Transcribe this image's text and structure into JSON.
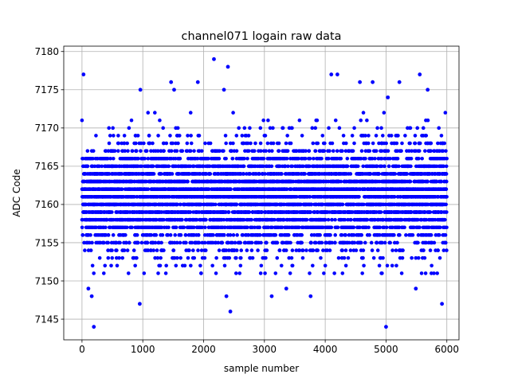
{
  "chart_data": {
    "type": "scatter",
    "title": "channel071 logain raw data",
    "xlabel": "sample number",
    "ylabel": "ADC Code",
    "xlim": [
      -300,
      6200
    ],
    "ylim": [
      7142.3,
      7180.7
    ],
    "xticks": [
      0,
      1000,
      2000,
      3000,
      4000,
      5000,
      6000
    ],
    "yticks": [
      7145,
      7150,
      7155,
      7160,
      7165,
      7170,
      7175,
      7180
    ],
    "grid": true,
    "legend": "none",
    "marker_color": "#0000ff",
    "n_samples": 6000,
    "typical_range": [
      7151,
      7172
    ],
    "center_value": 7161,
    "series": [
      {
        "name": "",
        "outliers": [
          {
            "x": 25,
            "y": 7177
          },
          {
            "x": 105,
            "y": 7149
          },
          {
            "x": 160,
            "y": 7148
          },
          {
            "x": 195,
            "y": 7144
          },
          {
            "x": 950,
            "y": 7147
          },
          {
            "x": 960,
            "y": 7175
          },
          {
            "x": 1465,
            "y": 7176
          },
          {
            "x": 1515,
            "y": 7175
          },
          {
            "x": 1905,
            "y": 7176
          },
          {
            "x": 2170,
            "y": 7179
          },
          {
            "x": 2335,
            "y": 7175
          },
          {
            "x": 2375,
            "y": 7148
          },
          {
            "x": 2400,
            "y": 7178
          },
          {
            "x": 2440,
            "y": 7146
          },
          {
            "x": 3120,
            "y": 7148
          },
          {
            "x": 3360,
            "y": 7149
          },
          {
            "x": 3760,
            "y": 7148
          },
          {
            "x": 4100,
            "y": 7177
          },
          {
            "x": 4200,
            "y": 7177
          },
          {
            "x": 4570,
            "y": 7176
          },
          {
            "x": 4780,
            "y": 7176
          },
          {
            "x": 5000,
            "y": 7144
          },
          {
            "x": 5030,
            "y": 7174
          },
          {
            "x": 5220,
            "y": 7176
          },
          {
            "x": 5490,
            "y": 7149
          },
          {
            "x": 5555,
            "y": 7177
          },
          {
            "x": 5685,
            "y": 7175
          },
          {
            "x": 5920,
            "y": 7147
          }
        ]
      }
    ]
  }
}
